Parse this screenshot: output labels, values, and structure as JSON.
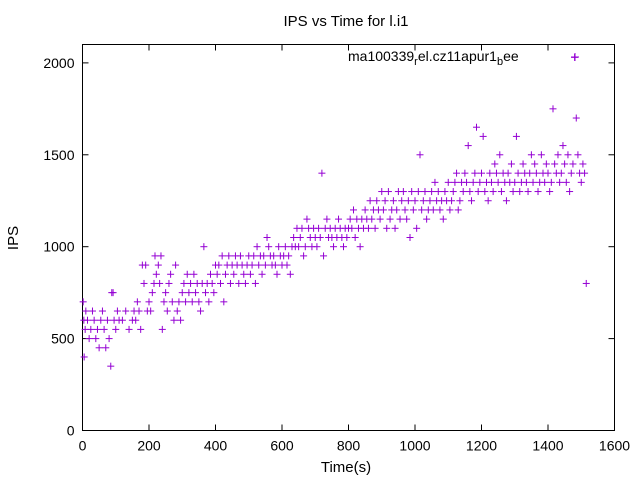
{
  "chart_data": {
    "type": "scatter",
    "title": "IPS vs Time for l.i1",
    "xlabel": "Time(s)",
    "ylabel": "IPS",
    "xlim": [
      0,
      1600
    ],
    "ylim": [
      0,
      2100
    ],
    "xticks": [
      0,
      200,
      400,
      600,
      800,
      1000,
      1200,
      1400,
      1600
    ],
    "yticks": [
      0,
      500,
      1000,
      1500,
      2000
    ],
    "grid": false,
    "legend_position": "top-right",
    "marker": "+",
    "series": [
      {
        "name": "ma100339_rel.cz11apur1_bee",
        "legend_parts": [
          "ma100339",
          "r",
          "el.cz11apur1",
          "b",
          "ee"
        ],
        "color": "#9400d3",
        "points": [
          [
            2,
            700
          ],
          [
            4,
            600
          ],
          [
            5,
            400
          ],
          [
            8,
            550
          ],
          [
            10,
            650
          ],
          [
            15,
            600
          ],
          [
            20,
            500
          ],
          [
            25,
            550
          ],
          [
            30,
            650
          ],
          [
            35,
            600
          ],
          [
            40,
            500
          ],
          [
            45,
            550
          ],
          [
            50,
            450
          ],
          [
            55,
            600
          ],
          [
            60,
            650
          ],
          [
            65,
            550
          ],
          [
            70,
            450
          ],
          [
            75,
            600
          ],
          [
            80,
            500
          ],
          [
            85,
            350
          ],
          [
            88,
            750
          ],
          [
            92,
            750
          ],
          [
            95,
            600
          ],
          [
            100,
            550
          ],
          [
            105,
            650
          ],
          [
            110,
            600
          ],
          [
            120,
            600
          ],
          [
            130,
            650
          ],
          [
            140,
            550
          ],
          [
            150,
            600
          ],
          [
            155,
            650
          ],
          [
            160,
            600
          ],
          [
            165,
            700
          ],
          [
            170,
            650
          ],
          [
            175,
            550
          ],
          [
            180,
            900
          ],
          [
            185,
            800
          ],
          [
            190,
            900
          ],
          [
            195,
            650
          ],
          [
            200,
            700
          ],
          [
            205,
            650
          ],
          [
            210,
            750
          ],
          [
            215,
            800
          ],
          [
            218,
            950
          ],
          [
            222,
            850
          ],
          [
            228,
            900
          ],
          [
            232,
            800
          ],
          [
            236,
            950
          ],
          [
            240,
            550
          ],
          [
            245,
            700
          ],
          [
            250,
            750
          ],
          [
            255,
            650
          ],
          [
            260,
            800
          ],
          [
            265,
            850
          ],
          [
            270,
            700
          ],
          [
            275,
            600
          ],
          [
            280,
            900
          ],
          [
            285,
            650
          ],
          [
            290,
            700
          ],
          [
            295,
            600
          ],
          [
            300,
            750
          ],
          [
            305,
            800
          ],
          [
            310,
            700
          ],
          [
            315,
            850
          ],
          [
            320,
            750
          ],
          [
            325,
            800
          ],
          [
            330,
            700
          ],
          [
            335,
            850
          ],
          [
            340,
            750
          ],
          [
            345,
            800
          ],
          [
            350,
            700
          ],
          [
            355,
            650
          ],
          [
            360,
            800
          ],
          [
            365,
            1000
          ],
          [
            370,
            750
          ],
          [
            375,
            800
          ],
          [
            380,
            700
          ],
          [
            385,
            850
          ],
          [
            390,
            800
          ],
          [
            395,
            750
          ],
          [
            400,
            900
          ],
          [
            405,
            850
          ],
          [
            410,
            900
          ],
          [
            415,
            800
          ],
          [
            420,
            950
          ],
          [
            425,
            700
          ],
          [
            430,
            850
          ],
          [
            435,
            900
          ],
          [
            440,
            950
          ],
          [
            445,
            800
          ],
          [
            450,
            900
          ],
          [
            455,
            850
          ],
          [
            460,
            950
          ],
          [
            465,
            900
          ],
          [
            470,
            800
          ],
          [
            475,
            950
          ],
          [
            480,
            900
          ],
          [
            485,
            850
          ],
          [
            490,
            800
          ],
          [
            495,
            900
          ],
          [
            500,
            950
          ],
          [
            505,
            850
          ],
          [
            510,
            900
          ],
          [
            515,
            950
          ],
          [
            520,
            800
          ],
          [
            525,
            1000
          ],
          [
            530,
            900
          ],
          [
            535,
            950
          ],
          [
            540,
            850
          ],
          [
            545,
            950
          ],
          [
            550,
            900
          ],
          [
            555,
            1050
          ],
          [
            560,
            1000
          ],
          [
            565,
            950
          ],
          [
            570,
            900
          ],
          [
            575,
            950
          ],
          [
            580,
            900
          ],
          [
            585,
            850
          ],
          [
            590,
            1000
          ],
          [
            595,
            950
          ],
          [
            600,
            900
          ],
          [
            605,
            950
          ],
          [
            610,
            1000
          ],
          [
            615,
            900
          ],
          [
            620,
            950
          ],
          [
            625,
            850
          ],
          [
            630,
            1000
          ],
          [
            635,
            1050
          ],
          [
            640,
            1000
          ],
          [
            645,
            1100
          ],
          [
            650,
            1000
          ],
          [
            655,
            1050
          ],
          [
            660,
            1100
          ],
          [
            665,
            950
          ],
          [
            670,
            1000
          ],
          [
            675,
            1150
          ],
          [
            680,
            1100
          ],
          [
            685,
            1050
          ],
          [
            690,
            1000
          ],
          [
            695,
            1100
          ],
          [
            700,
            1050
          ],
          [
            705,
            1000
          ],
          [
            710,
            1100
          ],
          [
            715,
            1050
          ],
          [
            720,
            1400
          ],
          [
            725,
            950
          ],
          [
            730,
            1100
          ],
          [
            735,
            1150
          ],
          [
            740,
            1050
          ],
          [
            745,
            1100
          ],
          [
            750,
            1050
          ],
          [
            755,
            1000
          ],
          [
            760,
            1100
          ],
          [
            765,
            1050
          ],
          [
            770,
            1150
          ],
          [
            775,
            1100
          ],
          [
            780,
            1050
          ],
          [
            785,
            1000
          ],
          [
            790,
            1100
          ],
          [
            795,
            1050
          ],
          [
            800,
            1100
          ],
          [
            805,
            1150
          ],
          [
            810,
            1100
          ],
          [
            815,
            1200
          ],
          [
            820,
            1050
          ],
          [
            825,
            1150
          ],
          [
            830,
            1100
          ],
          [
            835,
            1000
          ],
          [
            840,
            1150
          ],
          [
            845,
            1100
          ],
          [
            850,
            1200
          ],
          [
            855,
            1150
          ],
          [
            860,
            1100
          ],
          [
            865,
            1250
          ],
          [
            870,
            1150
          ],
          [
            875,
            1200
          ],
          [
            880,
            1100
          ],
          [
            885,
            1250
          ],
          [
            890,
            1200
          ],
          [
            895,
            1150
          ],
          [
            900,
            1300
          ],
          [
            905,
            1200
          ],
          [
            910,
            1250
          ],
          [
            915,
            1100
          ],
          [
            920,
            1300
          ],
          [
            925,
            1150
          ],
          [
            930,
            1200
          ],
          [
            935,
            1250
          ],
          [
            940,
            1100
          ],
          [
            945,
            1200
          ],
          [
            950,
            1300
          ],
          [
            955,
            1150
          ],
          [
            960,
            1250
          ],
          [
            965,
            1300
          ],
          [
            970,
            1200
          ],
          [
            975,
            1150
          ],
          [
            980,
            1250
          ],
          [
            985,
            1050
          ],
          [
            990,
            1300
          ],
          [
            995,
            1200
          ],
          [
            1000,
            1250
          ],
          [
            1005,
            1100
          ],
          [
            1010,
            1300
          ],
          [
            1015,
            1500
          ],
          [
            1020,
            1200
          ],
          [
            1025,
            1250
          ],
          [
            1030,
            1300
          ],
          [
            1035,
            1150
          ],
          [
            1040,
            1200
          ],
          [
            1045,
            1250
          ],
          [
            1050,
            1300
          ],
          [
            1055,
            1200
          ],
          [
            1060,
            1350
          ],
          [
            1065,
            1250
          ],
          [
            1070,
            1300
          ],
          [
            1075,
            1200
          ],
          [
            1080,
            1250
          ],
          [
            1085,
            1150
          ],
          [
            1090,
            1300
          ],
          [
            1095,
            1250
          ],
          [
            1100,
            1350
          ],
          [
            1105,
            1200
          ],
          [
            1110,
            1250
          ],
          [
            1115,
            1300
          ],
          [
            1120,
            1350
          ],
          [
            1125,
            1400
          ],
          [
            1130,
            1200
          ],
          [
            1135,
            1250
          ],
          [
            1140,
            1350
          ],
          [
            1145,
            1300
          ],
          [
            1150,
            1400
          ],
          [
            1155,
            1350
          ],
          [
            1160,
            1550
          ],
          [
            1165,
            1300
          ],
          [
            1170,
            1250
          ],
          [
            1175,
            1350
          ],
          [
            1180,
            1400
          ],
          [
            1185,
            1650
          ],
          [
            1190,
            1300
          ],
          [
            1195,
            1350
          ],
          [
            1200,
            1400
          ],
          [
            1205,
            1600
          ],
          [
            1210,
            1300
          ],
          [
            1215,
            1350
          ],
          [
            1220,
            1250
          ],
          [
            1225,
            1400
          ],
          [
            1230,
            1350
          ],
          [
            1235,
            1300
          ],
          [
            1240,
            1450
          ],
          [
            1245,
            1400
          ],
          [
            1250,
            1350
          ],
          [
            1255,
            1500
          ],
          [
            1260,
            1300
          ],
          [
            1265,
            1400
          ],
          [
            1270,
            1350
          ],
          [
            1275,
            1250
          ],
          [
            1280,
            1400
          ],
          [
            1285,
            1350
          ],
          [
            1290,
            1450
          ],
          [
            1295,
            1300
          ],
          [
            1300,
            1350
          ],
          [
            1305,
            1600
          ],
          [
            1310,
            1400
          ],
          [
            1315,
            1300
          ],
          [
            1320,
            1350
          ],
          [
            1325,
            1450
          ],
          [
            1330,
            1400
          ],
          [
            1335,
            1350
          ],
          [
            1340,
            1300
          ],
          [
            1345,
            1400
          ],
          [
            1350,
            1500
          ],
          [
            1355,
            1350
          ],
          [
            1360,
            1450
          ],
          [
            1365,
            1400
          ],
          [
            1370,
            1300
          ],
          [
            1375,
            1350
          ],
          [
            1380,
            1500
          ],
          [
            1385,
            1400
          ],
          [
            1390,
            1350
          ],
          [
            1395,
            1450
          ],
          [
            1400,
            1400
          ],
          [
            1405,
            1300
          ],
          [
            1410,
            1350
          ],
          [
            1415,
            1750
          ],
          [
            1420,
            1450
          ],
          [
            1425,
            1400
          ],
          [
            1430,
            1500
          ],
          [
            1435,
            1350
          ],
          [
            1440,
            1400
          ],
          [
            1445,
            1550
          ],
          [
            1450,
            1450
          ],
          [
            1455,
            1350
          ],
          [
            1460,
            1500
          ],
          [
            1465,
            1300
          ],
          [
            1470,
            1400
          ],
          [
            1475,
            1450
          ],
          [
            1480,
            2030
          ],
          [
            1485,
            1700
          ],
          [
            1490,
            1500
          ],
          [
            1495,
            1400
          ],
          [
            1500,
            1350
          ],
          [
            1505,
            1450
          ],
          [
            1510,
            1400
          ],
          [
            1515,
            800
          ]
        ]
      }
    ]
  }
}
